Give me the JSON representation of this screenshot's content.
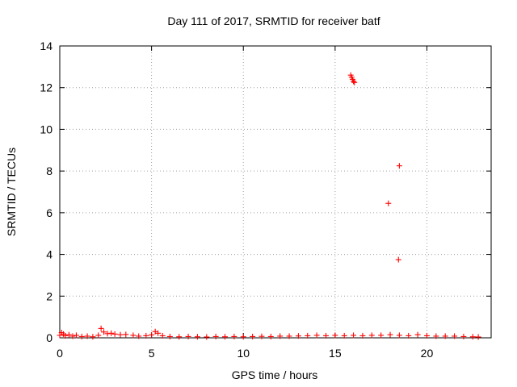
{
  "chart_data": {
    "type": "scatter",
    "title": "Day 111 of 2017, SRMTID for receiver batf",
    "xlabel": "GPS time / hours",
    "ylabel": "SRMTID / TECUs",
    "xlim": [
      0,
      23.5
    ],
    "ylim": [
      0,
      14
    ],
    "xticks": [
      0,
      5,
      10,
      15,
      20
    ],
    "yticks": [
      0,
      2,
      4,
      6,
      8,
      10,
      12,
      14
    ],
    "grid": true,
    "marker": "+",
    "marker_color": "#ff0000",
    "series": [
      {
        "points": [
          [
            0.0,
            0.12
          ],
          [
            0.1,
            0.25
          ],
          [
            0.2,
            0.18
          ],
          [
            0.3,
            0.1
          ],
          [
            0.5,
            0.15
          ],
          [
            0.7,
            0.08
          ],
          [
            0.9,
            0.12
          ],
          [
            1.2,
            0.06
          ],
          [
            1.5,
            0.08
          ],
          [
            1.8,
            0.05
          ],
          [
            2.1,
            0.12
          ],
          [
            2.25,
            0.45
          ],
          [
            2.4,
            0.28
          ],
          [
            2.6,
            0.2
          ],
          [
            2.8,
            0.22
          ],
          [
            3.0,
            0.18
          ],
          [
            3.3,
            0.15
          ],
          [
            3.6,
            0.16
          ],
          [
            4.0,
            0.12
          ],
          [
            4.3,
            0.08
          ],
          [
            4.7,
            0.1
          ],
          [
            5.0,
            0.14
          ],
          [
            5.2,
            0.3
          ],
          [
            5.35,
            0.22
          ],
          [
            5.6,
            0.1
          ],
          [
            6.0,
            0.06
          ],
          [
            6.5,
            0.05
          ],
          [
            7.0,
            0.06
          ],
          [
            7.5,
            0.05
          ],
          [
            8.0,
            0.04
          ],
          [
            8.5,
            0.06
          ],
          [
            9.0,
            0.05
          ],
          [
            9.5,
            0.06
          ],
          [
            10.0,
            0.05
          ],
          [
            10.5,
            0.06
          ],
          [
            11.0,
            0.07
          ],
          [
            11.5,
            0.06
          ],
          [
            12.0,
            0.08
          ],
          [
            12.5,
            0.08
          ],
          [
            13.0,
            0.09
          ],
          [
            13.5,
            0.1
          ],
          [
            14.0,
            0.12
          ],
          [
            14.5,
            0.1
          ],
          [
            15.0,
            0.12
          ],
          [
            15.5,
            0.1
          ],
          [
            16.0,
            0.12
          ],
          [
            16.5,
            0.1
          ],
          [
            17.0,
            0.12
          ],
          [
            17.5,
            0.12
          ],
          [
            18.0,
            0.15
          ],
          [
            18.5,
            0.12
          ],
          [
            19.0,
            0.1
          ],
          [
            19.5,
            0.15
          ],
          [
            20.0,
            0.1
          ],
          [
            20.5,
            0.08
          ],
          [
            21.0,
            0.08
          ],
          [
            21.5,
            0.08
          ],
          [
            22.0,
            0.06
          ],
          [
            22.5,
            0.05
          ],
          [
            22.8,
            0.04
          ],
          [
            15.85,
            12.6
          ],
          [
            15.9,
            12.5
          ],
          [
            15.95,
            12.4
          ],
          [
            16.0,
            12.3
          ],
          [
            16.05,
            12.25
          ],
          [
            18.5,
            8.25
          ],
          [
            17.9,
            6.45
          ],
          [
            18.45,
            3.75
          ]
        ]
      }
    ]
  }
}
